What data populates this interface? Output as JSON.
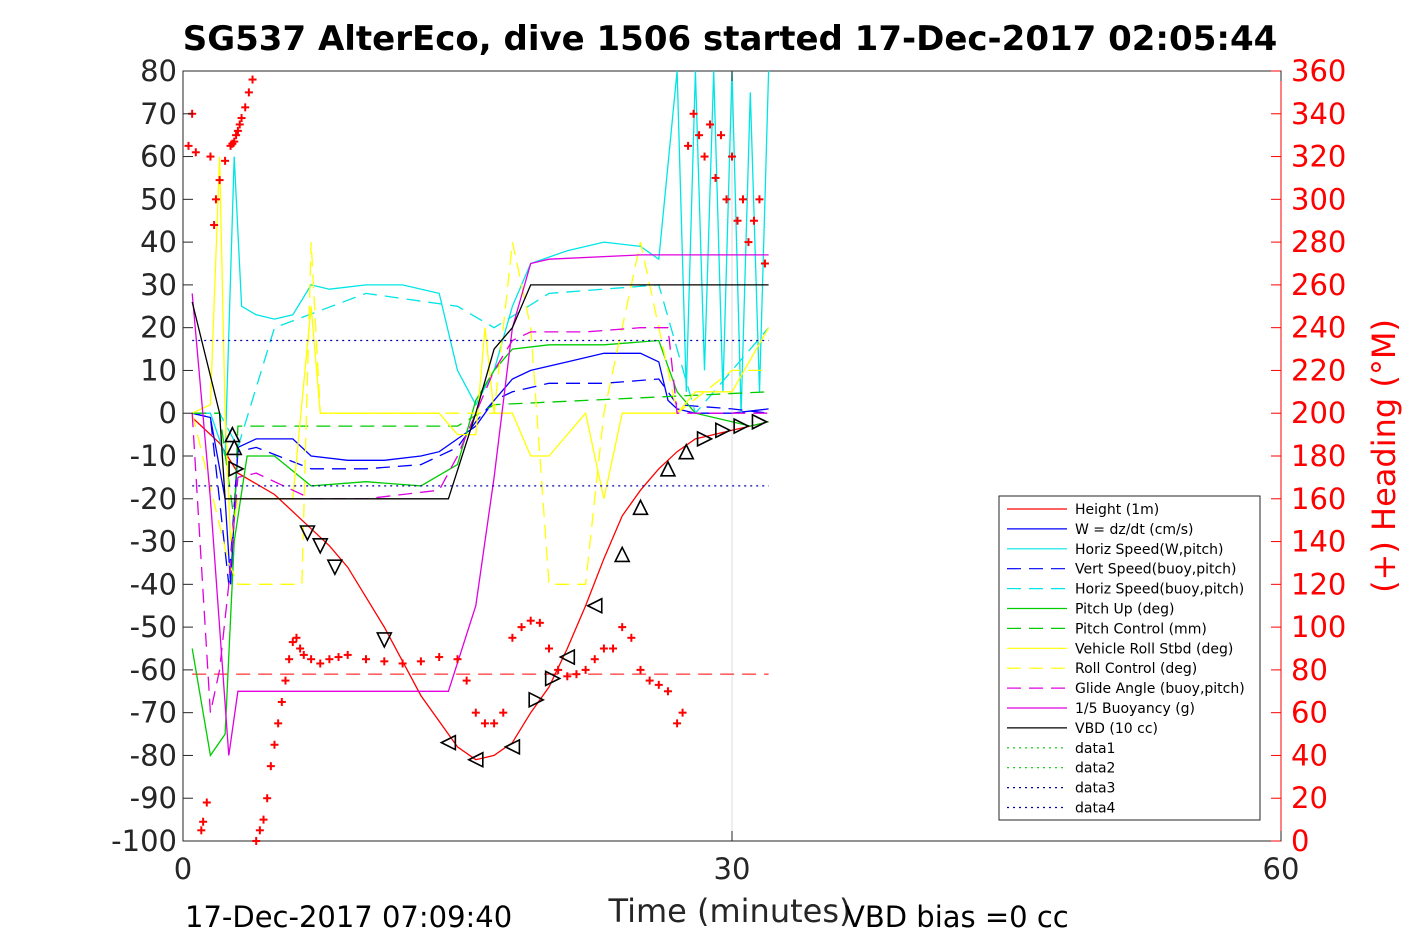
{
  "chart_data": {
    "type": "line",
    "title": "SG537 AlterEco, dive 1506 started 17-Dec-2017 02:05:44",
    "xlabel": "Time (minutes)",
    "ylabel_right": "(+) Heading (°M)",
    "xlim": [
      0,
      60
    ],
    "ylim_left": [
      -100,
      80
    ],
    "ylim_right": [
      0,
      360
    ],
    "xticks": [
      "0",
      "30",
      "60"
    ],
    "yticks_left": [
      "80",
      "70",
      "60",
      "50",
      "40",
      "30",
      "20",
      "10",
      "0",
      "-10",
      "-20",
      "-30",
      "-40",
      "-50",
      "-60",
      "-70",
      "-80",
      "-90",
      "-100"
    ],
    "yticks_right": [
      "360",
      "340",
      "320",
      "300",
      "280",
      "260",
      "240",
      "220",
      "200",
      "180",
      "160",
      "140",
      "120",
      "100",
      "80",
      "60",
      "40",
      "20",
      "0"
    ],
    "grid": "x at 30 only",
    "legend_position": "bottom-right",
    "footer_left": "17-Dec-2017 07:09:40",
    "footer_right": "VBD bias =0 cc",
    "legend": [
      {
        "name": "Height (1m)",
        "color": "#ff0000",
        "dash": "solid"
      },
      {
        "name": "W = dz/dt (cm/s)",
        "color": "#0000ff",
        "dash": "solid"
      },
      {
        "name": "Horiz Speed(W,pitch)",
        "color": "#00e5e5",
        "dash": "solid"
      },
      {
        "name": "Vert Speed(buoy,pitch)",
        "color": "#0000ff",
        "dash": "dashed"
      },
      {
        "name": "Horiz Speed(buoy,pitch)",
        "color": "#00e5e5",
        "dash": "dashed"
      },
      {
        "name": "Pitch Up (deg)",
        "color": "#00cc00",
        "dash": "solid"
      },
      {
        "name": "Pitch Control (mm)",
        "color": "#00cc00",
        "dash": "dashed"
      },
      {
        "name": "Vehicle Roll Stbd (deg)",
        "color": "#ffff00",
        "dash": "solid"
      },
      {
        "name": "Roll Control (deg)",
        "color": "#ffff00",
        "dash": "dashed"
      },
      {
        "name": "Glide Angle (buoy,pitch)",
        "color": "#e000e0",
        "dash": "dashed"
      },
      {
        "name": "1/5 Buoyancy (g)",
        "color": "#e000e0",
        "dash": "solid"
      },
      {
        "name": "VBD (10 cc)",
        "color": "#000000",
        "dash": "solid"
      },
      {
        "name": "data1",
        "color": "#00cc00",
        "dash": "dotted"
      },
      {
        "name": "data2",
        "color": "#00cc00",
        "dash": "dotted"
      },
      {
        "name": "data3",
        "color": "#0000aa",
        "dash": "dotted"
      },
      {
        "name": "data4",
        "color": "#0000aa",
        "dash": "dotted"
      }
    ],
    "series": [
      {
        "name": "Height (1m)",
        "axis": "left",
        "color": "#ff0000",
        "dash": "solid",
        "x": [
          0.5,
          2.0,
          3.0,
          5.0,
          7.0,
          8.0,
          9.0,
          11.0,
          13.0,
          15.0,
          16.0,
          17.0,
          18.0,
          19.0,
          20.0,
          21.0,
          22.0,
          23.0,
          24.0,
          25.0,
          26.0,
          27.0,
          28.0,
          29.0,
          30.0,
          31.0,
          32.0
        ],
        "y": [
          -1,
          -7,
          -14,
          -19,
          -27,
          -31,
          -36,
          -50,
          -66,
          -78,
          -81,
          -80,
          -77,
          -70,
          -64,
          -55,
          -45,
          -34,
          -24,
          -18,
          -13,
          -9,
          -6,
          -5,
          -4,
          -3,
          -2
        ]
      },
      {
        "name": "W = dz/dt (cm/s)",
        "axis": "left",
        "color": "#0000ff",
        "dash": "solid",
        "x": [
          0.5,
          1.5,
          2.3,
          2.6,
          3.0,
          4.0,
          5.0,
          6.0,
          7.0,
          9.0,
          11.0,
          13.0,
          14.0,
          15.0,
          16.0,
          17.0,
          18.0,
          19.0,
          21.0,
          23.0,
          25.0,
          26.0,
          26.5,
          27.0,
          28.0,
          30.0,
          32.0
        ],
        "y": [
          0,
          -1,
          -20,
          -40,
          -8,
          -6,
          -6,
          -6,
          -10,
          -11,
          -11,
          -10,
          -9,
          -6,
          -3,
          3,
          8,
          10,
          12,
          14,
          14,
          12,
          3,
          1,
          0,
          0,
          1
        ]
      },
      {
        "name": "Horiz Speed(W,pitch)",
        "axis": "left",
        "color": "#00e5e5",
        "dash": "solid",
        "x": [
          0.5,
          1.5,
          2.3,
          2.8,
          3.2,
          4.0,
          5.0,
          6.0,
          7.0,
          8.0,
          10.0,
          12.0,
          14.0,
          15.0,
          16.0,
          17.0,
          18.0,
          19.0,
          21.0,
          23.0,
          25.0,
          26.0,
          27.0,
          27.5,
          28.0,
          28.5,
          29.0,
          29.5,
          30.0,
          30.5,
          31.0,
          31.5,
          32.0
        ],
        "y": [
          0,
          0,
          -10,
          60,
          25,
          23,
          22,
          23,
          30,
          29,
          30,
          30,
          28,
          10,
          2,
          10,
          25,
          35,
          38,
          40,
          39,
          36,
          80,
          5,
          80,
          10,
          80,
          5,
          80,
          0,
          75,
          5,
          80
        ]
      },
      {
        "name": "Vert Speed(buoy,pitch)",
        "axis": "left",
        "color": "#0000ff",
        "dash": "dashed",
        "x": [
          0.5,
          1.5,
          2.5,
          3.0,
          4.0,
          7.0,
          10.0,
          13.0,
          15.0,
          16.0,
          17.0,
          18.0,
          20.0,
          23.0,
          26.0,
          27.0,
          30.0,
          32.0
        ],
        "y": [
          0,
          -1,
          -40,
          -9,
          -8,
          -13,
          -13,
          -12,
          -8,
          -2,
          3,
          5,
          7,
          7,
          8,
          2,
          1,
          0
        ]
      },
      {
        "name": "Horiz Speed(buoy,pitch)",
        "axis": "left",
        "color": "#00e5e5",
        "dash": "dashed",
        "x": [
          0.5,
          2.0,
          3.0,
          5.0,
          10.0,
          15.0,
          17.0,
          20.0,
          26.0,
          28.0,
          32.0
        ],
        "y": [
          0,
          0,
          -8,
          20,
          28,
          25,
          20,
          28,
          30,
          0,
          20
        ]
      },
      {
        "name": "Pitch Up (deg)",
        "axis": "left",
        "color": "#00cc00",
        "dash": "solid",
        "x": [
          0.5,
          1.5,
          2.3,
          2.8,
          3.5,
          5.0,
          7.0,
          10.0,
          13.0,
          15.0,
          16.0,
          17.0,
          18.0,
          20.0,
          23.0,
          26.0,
          27.0,
          28.0,
          30.0,
          31.0,
          32.0
        ],
        "y": [
          -55,
          -80,
          -75,
          -30,
          -10,
          -10,
          -17,
          -16,
          -17,
          -12,
          3,
          10,
          15,
          16,
          16,
          17,
          5,
          0,
          -2,
          -3,
          -2
        ]
      },
      {
        "name": "Pitch Control (mm)",
        "axis": "left",
        "color": "#00cc00",
        "dash": "dashed",
        "x": [
          0.5,
          2.0,
          2.8,
          3.0,
          14.0,
          15.0,
          17.0,
          32.0
        ],
        "y": [
          0,
          0,
          -25,
          -3,
          -3,
          -3,
          2,
          5
        ]
      },
      {
        "name": "Vehicle Roll Stbd (deg)",
        "axis": "left",
        "color": "#ffff00",
        "dash": "solid",
        "x": [
          0.5,
          1.5,
          2.0,
          2.3,
          2.6,
          3.0,
          4.0,
          6.0,
          7.0,
          7.5,
          8.0,
          10.0,
          12.0,
          14.0,
          15.0,
          16.0,
          16.5,
          17.0,
          18.0,
          19.0,
          20.0,
          22.0,
          23.0,
          24.0,
          25.0,
          26.0,
          27.0,
          28.0,
          30.0,
          32.0
        ],
        "y": [
          0,
          2,
          60,
          0,
          -30,
          -20,
          -20,
          -20,
          25,
          0,
          0,
          0,
          0,
          0,
          -5,
          -5,
          20,
          0,
          0,
          -10,
          -10,
          0,
          -20,
          0,
          0,
          0,
          0,
          5,
          5,
          20
        ]
      },
      {
        "name": "Roll Control (deg)",
        "axis": "left",
        "color": "#ffff00",
        "dash": "dashed",
        "x": [
          0.5,
          2.5,
          3.0,
          4.0,
          6.5,
          7.0,
          7.5,
          8.0,
          15.0,
          16.0,
          17.0,
          18.0,
          19.0,
          20.0,
          22.0,
          23.0,
          25.0,
          27.0,
          30.0,
          32.0
        ],
        "y": [
          0,
          -35,
          -40,
          -40,
          -40,
          40,
          0,
          0,
          0,
          0,
          0,
          40,
          20,
          -40,
          -40,
          0,
          40,
          0,
          10,
          10
        ]
      },
      {
        "name": "Glide Angle (buoy,pitch)",
        "axis": "left",
        "color": "#e000e0",
        "dash": "dashed",
        "x": [
          0.5,
          1.5,
          2.0,
          2.5,
          3.0,
          4.0,
          7.0,
          10.0,
          14.0,
          15.0,
          16.0,
          17.0,
          18.0,
          19.0,
          22.0,
          25.0,
          26.5,
          27.0,
          30.0,
          32.0
        ],
        "y": [
          0,
          -70,
          -60,
          -40,
          -15,
          -14,
          -20,
          -20,
          -18,
          -10,
          0,
          10,
          17,
          19,
          19,
          20,
          20,
          0,
          0,
          0
        ]
      },
      {
        "name": "1/5 Buoyancy (g)",
        "axis": "left",
        "color": "#e000e0",
        "dash": "solid",
        "x": [
          0.5,
          1.5,
          2.5,
          3.0,
          9.0,
          13.0,
          14.5,
          16.0,
          17.0,
          18.0,
          19.0,
          20.0,
          25.0,
          30.0,
          32.0
        ],
        "y": [
          28,
          -20,
          -80,
          -65,
          -65,
          -65,
          -65,
          -45,
          -15,
          20,
          35,
          36,
          37,
          37,
          37
        ]
      },
      {
        "name": "VBD (10 cc)",
        "axis": "left",
        "color": "#000000",
        "dash": "solid",
        "x": [
          0.5,
          2.0,
          2.3,
          3.0,
          5.0,
          14.5,
          16.0,
          17.0,
          18.0,
          19.0,
          30.0,
          32.0
        ],
        "y": [
          26,
          0,
          -20,
          -20,
          -20,
          -20,
          0,
          15,
          20,
          30,
          30,
          30
        ]
      },
      {
        "name": "data1",
        "axis": "left",
        "color": "#00cc00",
        "dash": "dotted",
        "x": [],
        "y": []
      },
      {
        "name": "data2",
        "axis": "left",
        "color": "#00cc00",
        "dash": "dotted",
        "x": [],
        "y": []
      },
      {
        "name": "data3",
        "axis": "left",
        "color": "#0000aa",
        "dash": "dotted",
        "x": [
          0.5,
          32
        ],
        "y": [
          17,
          17
        ]
      },
      {
        "name": "data4",
        "axis": "left",
        "color": "#0000aa",
        "dash": "dotted",
        "x": [
          0.5,
          32
        ],
        "y": [
          -17,
          -17
        ]
      }
    ],
    "reference_line": {
      "axis": "left",
      "y": -61,
      "x": [
        0.5,
        32
      ],
      "color": "#ff0000",
      "dash": "dashed"
    },
    "heading_points": {
      "axis": "right",
      "color": "#ff0000",
      "marker": "+",
      "x": [
        0.3,
        0.5,
        0.7,
        1.0,
        1.1,
        1.3,
        1.5,
        1.7,
        1.8,
        2.0,
        2.3,
        2.6,
        2.7,
        2.8,
        2.9,
        3.0,
        3.1,
        3.2,
        3.4,
        3.6,
        3.8,
        4.0,
        4.2,
        4.4,
        4.6,
        4.8,
        5.0,
        5.2,
        5.4,
        5.6,
        5.8,
        6.0,
        6.2,
        6.4,
        6.6,
        7.0,
        7.5,
        8.0,
        8.5,
        9.0,
        10.0,
        11.0,
        12.0,
        13.0,
        14.0,
        15.0,
        15.5,
        16.0,
        16.5,
        17.0,
        17.5,
        18.0,
        18.5,
        19.0,
        19.5,
        20.0,
        20.5,
        21.0,
        21.5,
        22.0,
        22.5,
        23.0,
        23.5,
        24.0,
        24.5,
        25.0,
        25.5,
        26.0,
        26.5,
        27.0,
        27.3,
        27.6,
        27.9,
        28.2,
        28.5,
        28.8,
        29.1,
        29.4,
        29.7,
        30.0,
        30.3,
        30.6,
        30.9,
        31.2,
        31.5,
        31.8
      ],
      "y": [
        325,
        340,
        322,
        5,
        9,
        18,
        320,
        288,
        300,
        309,
        318,
        325,
        326,
        327,
        330,
        332,
        335,
        338,
        343,
        350,
        356,
        0,
        5,
        10,
        20,
        35,
        45,
        55,
        65,
        75,
        85,
        93,
        95,
        90,
        87,
        85,
        83,
        85,
        86,
        87,
        85,
        84,
        83,
        84,
        86,
        85,
        75,
        60,
        55,
        55,
        60,
        95,
        100,
        103,
        102,
        90,
        80,
        77,
        78,
        80,
        85,
        90,
        90,
        100,
        95,
        80,
        75,
        73,
        70,
        55,
        60,
        325,
        340,
        330,
        320,
        335,
        310,
        330,
        300,
        320,
        290,
        300,
        280,
        290,
        300,
        270
      ]
    },
    "markers": {
      "axis": "left",
      "description": "triangle waypoint markers along Height trace",
      "points": [
        {
          "x": 2.7,
          "y": -5,
          "dir": "up"
        },
        {
          "x": 2.8,
          "y": -8,
          "dir": "up"
        },
        {
          "x": 2.9,
          "y": -13,
          "dir": "right"
        },
        {
          "x": 6.8,
          "y": -28,
          "dir": "down"
        },
        {
          "x": 7.5,
          "y": -31,
          "dir": "down"
        },
        {
          "x": 8.3,
          "y": -36,
          "dir": "down"
        },
        {
          "x": 11.0,
          "y": -53,
          "dir": "down"
        },
        {
          "x": 14.5,
          "y": -77,
          "dir": "left"
        },
        {
          "x": 16.0,
          "y": -81,
          "dir": "left"
        },
        {
          "x": 18.0,
          "y": -78,
          "dir": "left"
        },
        {
          "x": 19.3,
          "y": -67,
          "dir": "right"
        },
        {
          "x": 20.2,
          "y": -62,
          "dir": "right"
        },
        {
          "x": 21.0,
          "y": -57,
          "dir": "left"
        },
        {
          "x": 22.5,
          "y": -45,
          "dir": "left"
        },
        {
          "x": 24.0,
          "y": -33,
          "dir": "up"
        },
        {
          "x": 25.0,
          "y": -22,
          "dir": "up"
        },
        {
          "x": 26.5,
          "y": -13,
          "dir": "up"
        },
        {
          "x": 27.5,
          "y": -9,
          "dir": "up"
        },
        {
          "x": 28.5,
          "y": -6,
          "dir": "right"
        },
        {
          "x": 29.5,
          "y": -4,
          "dir": "right"
        },
        {
          "x": 30.5,
          "y": -3,
          "dir": "right"
        },
        {
          "x": 31.5,
          "y": -2,
          "dir": "right"
        }
      ]
    }
  }
}
